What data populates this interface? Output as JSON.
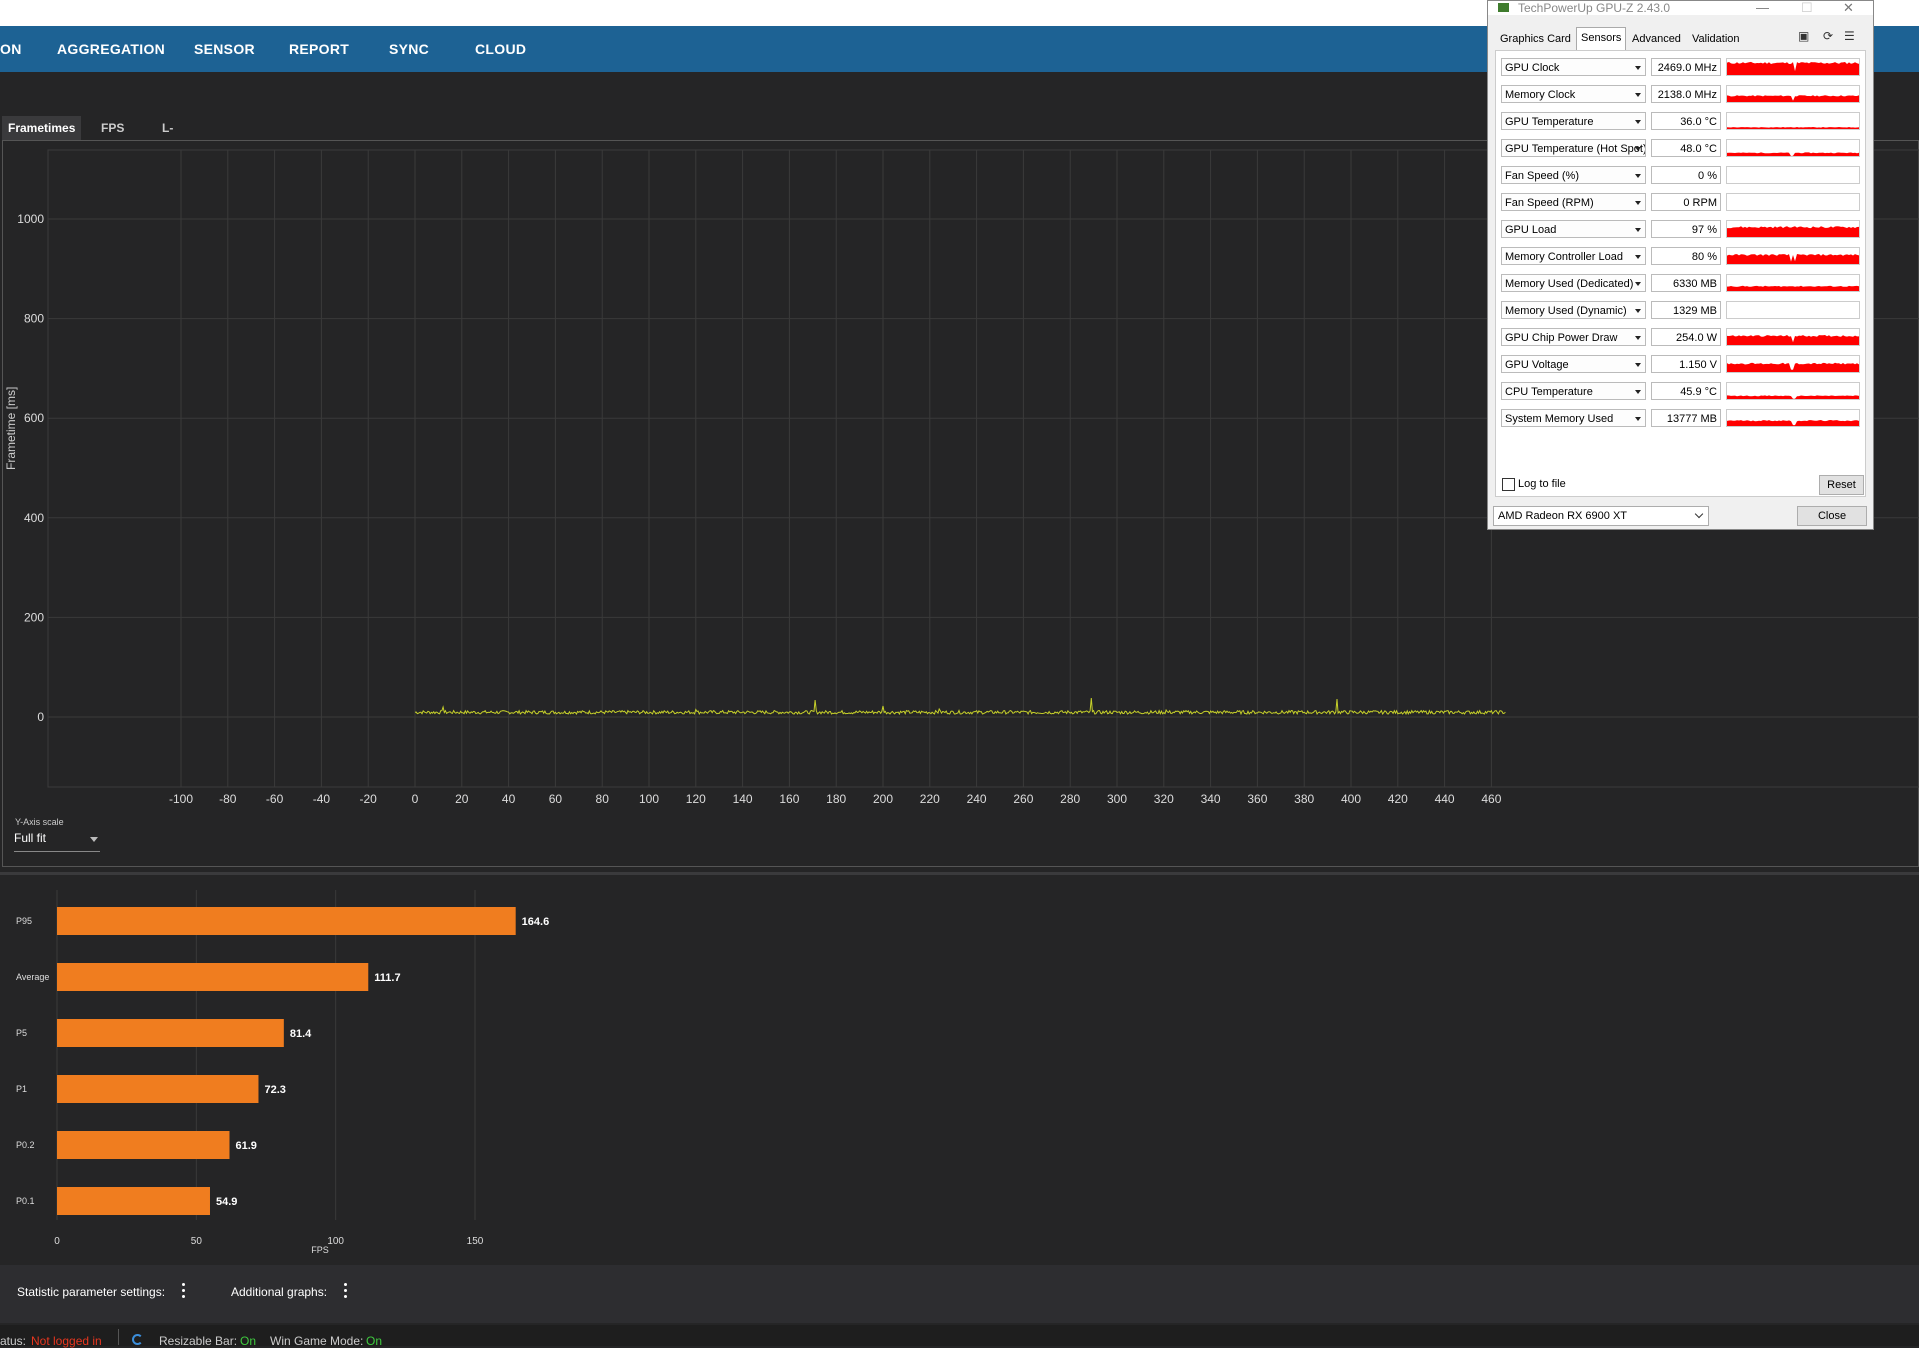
{
  "nav": {
    "items": [
      "ON",
      "AGGREGATION",
      "SENSOR",
      "REPORT",
      "SYNC",
      "CLOUD"
    ]
  },
  "tabs": [
    "Frametimes",
    "FPS",
    "L-shape"
  ],
  "frametime_chart": {
    "ylabel": "Frametime [ms]",
    "yticks": [
      "0",
      "200",
      "400",
      "600",
      "800",
      "1000"
    ],
    "xticks": [
      "-100",
      "-80",
      "-60",
      "-40",
      "-20",
      "0",
      "20",
      "40",
      "60",
      "80",
      "100",
      "120",
      "140",
      "160",
      "180",
      "200",
      "220",
      "240",
      "260",
      "280",
      "300",
      "320",
      "340",
      "360",
      "380",
      "400",
      "420",
      "440",
      "460"
    ],
    "y_axis_scale_label": "Y-Axis scale",
    "y_axis_scale_value": "Full fit",
    "line_color": "#c6d02a"
  },
  "chart_data": {
    "type": "bar",
    "categories": [
      "P95",
      "Average",
      "P5",
      "P1",
      "P0.2",
      "P0.1"
    ],
    "values": [
      164.6,
      111.7,
      81.4,
      72.3,
      61.9,
      54.9
    ],
    "value_labels": [
      "164.6",
      "111.7",
      "81.4",
      "72.3",
      "61.9",
      "54.9"
    ],
    "xlabel": "FPS",
    "xticks": [
      "0",
      "50",
      "100",
      "150"
    ],
    "xlim": [
      0,
      150
    ],
    "bar_color": "#f07d1f",
    "orientation": "horizontal"
  },
  "bottom_panel": {
    "stat_settings": "Statistic parameter settings:",
    "additional_graphs": "Additional graphs:"
  },
  "statusbar": {
    "status_label": "atus:",
    "status_value": "Not logged in",
    "resizable_bar_label": "Resizable Bar:",
    "resizable_bar_value": "On",
    "win_game_mode_label": "Win Game Mode:",
    "win_game_mode_value": "On"
  },
  "gpuz": {
    "title": "TechPowerUp GPU-Z 2.43.0",
    "tabs": [
      "Graphics Card",
      "Sensors",
      "Advanced",
      "Validation"
    ],
    "sensors": [
      {
        "name": "GPU Clock",
        "value": "2469.0 MHz"
      },
      {
        "name": "Memory Clock",
        "value": "2138.0 MHz"
      },
      {
        "name": "GPU Temperature",
        "value": "36.0 °C"
      },
      {
        "name": "GPU Temperature (Hot Spot)",
        "value": "48.0 °C"
      },
      {
        "name": "Fan Speed (%)",
        "value": "0 %"
      },
      {
        "name": "Fan Speed (RPM)",
        "value": "0 RPM"
      },
      {
        "name": "GPU Load",
        "value": "97 %"
      },
      {
        "name": "Memory Controller Load",
        "value": "80 %"
      },
      {
        "name": "Memory Used (Dedicated)",
        "value": "6330 MB"
      },
      {
        "name": "Memory Used (Dynamic)",
        "value": "1329 MB"
      },
      {
        "name": "GPU Chip Power Draw",
        "value": "254.0 W"
      },
      {
        "name": "GPU Voltage",
        "value": "1.150 V"
      },
      {
        "name": "CPU Temperature",
        "value": "45.9 °C"
      },
      {
        "name": "System Memory Used",
        "value": "13777 MB"
      }
    ],
    "log_to_file": "Log to file",
    "reset": "Reset",
    "gpu_select": "AMD Radeon RX 6900 XT",
    "close": "Close"
  }
}
